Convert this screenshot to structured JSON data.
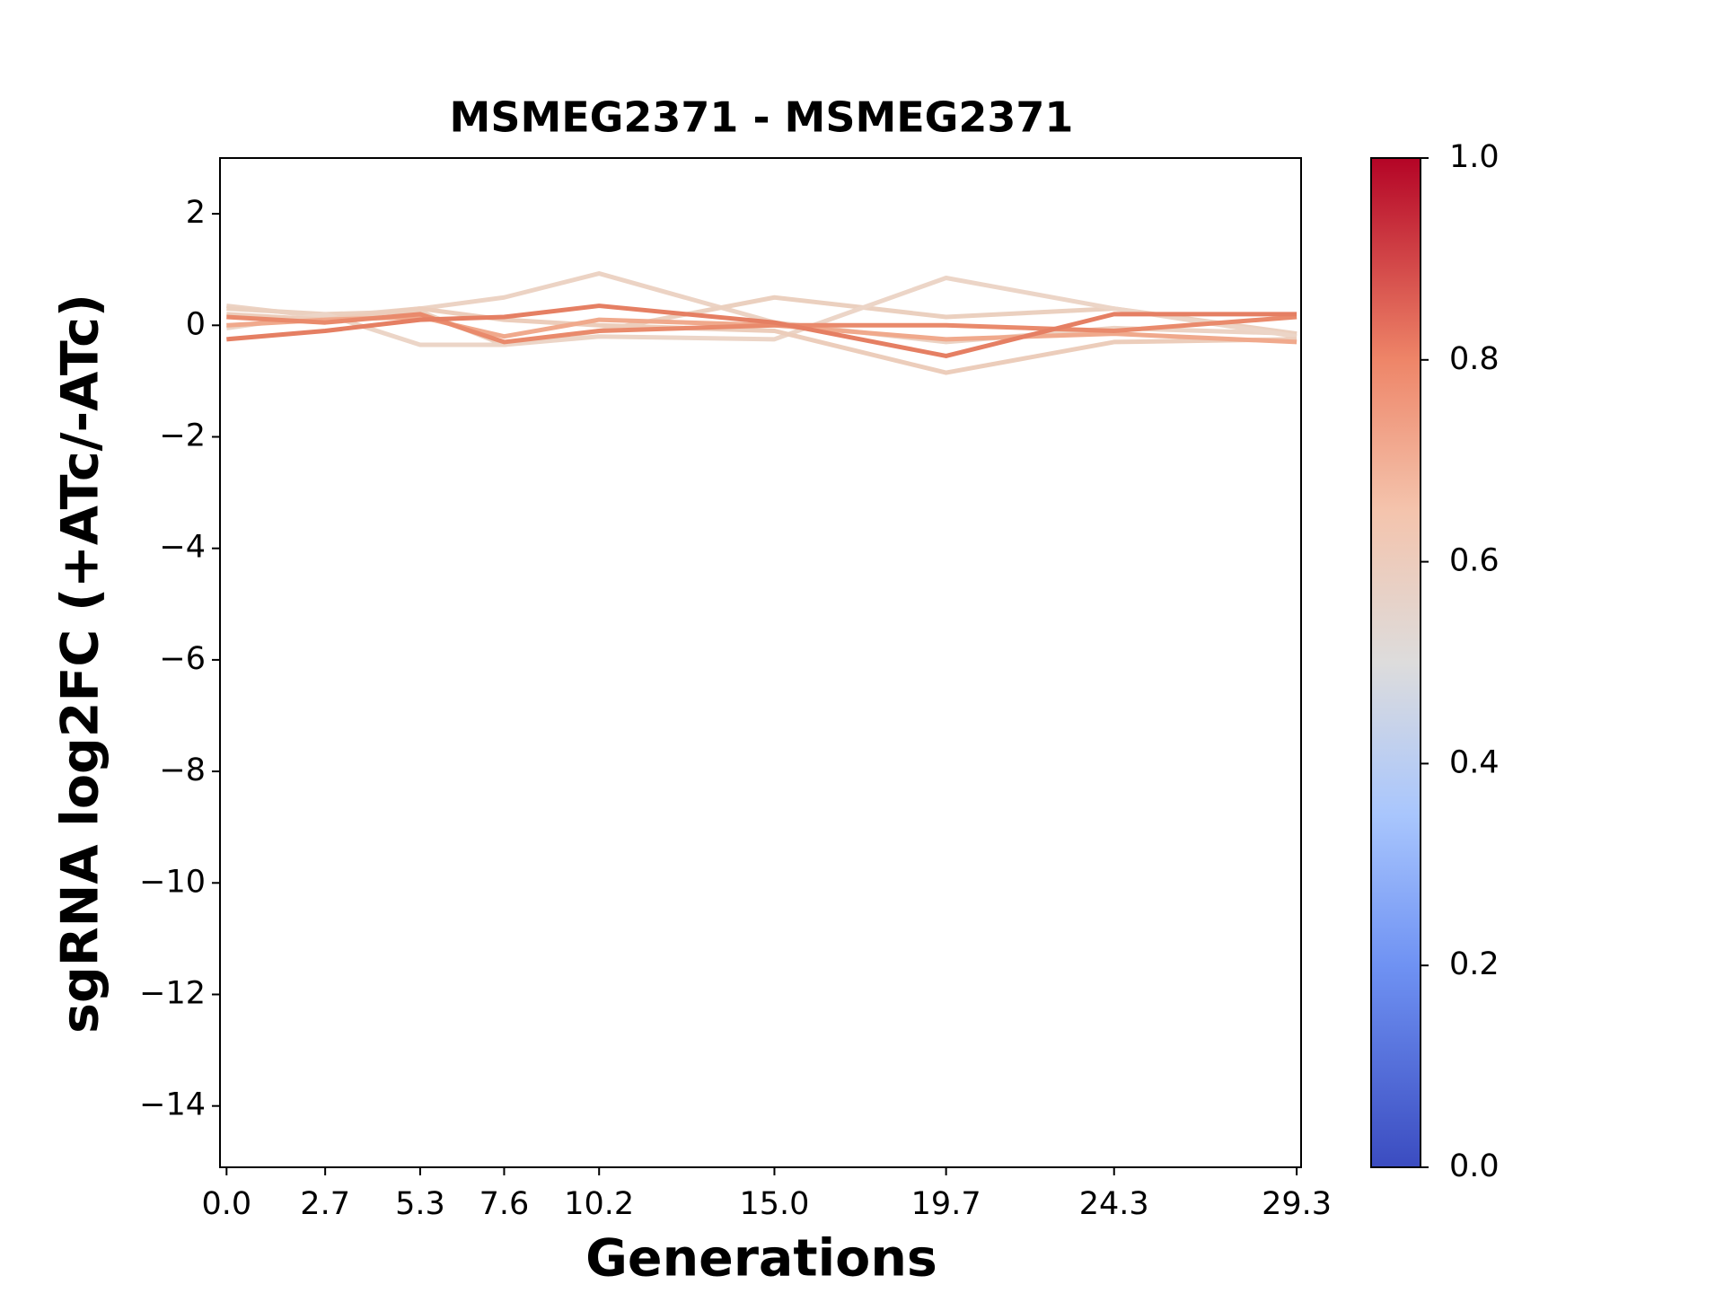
{
  "chart_data": {
    "type": "line",
    "title": "MSMEG2371 - MSMEG2371",
    "xlabel": "Generations",
    "ylabel": "sgRNA log2FC (+ATc/-ATc)",
    "x": [
      0,
      2.7,
      5.3,
      7.6,
      10.2,
      15.0,
      19.7,
      24.3,
      29.3
    ],
    "series": [
      {
        "color": "#ecd3c4",
        "values": [
          0.35,
          0.15,
          0.3,
          0.5,
          0.93,
          0.05,
          -0.3,
          -0.05,
          -0.15
        ]
      },
      {
        "color": "#ebd0bf",
        "values": [
          0.3,
          0.2,
          0.25,
          -0.35,
          -0.1,
          0.5,
          0.15,
          0.3,
          -0.15
        ]
      },
      {
        "color": "#ecd5c7",
        "values": [
          -0.05,
          0.2,
          -0.35,
          -0.35,
          -0.2,
          -0.25,
          0.85,
          0.3,
          -0.2
        ]
      },
      {
        "color": "#eccdbb",
        "values": [
          0.2,
          0.1,
          0.3,
          0.1,
          0.0,
          -0.1,
          -0.85,
          -0.3,
          -0.25
        ]
      },
      {
        "color": "#f0a98c",
        "values": [
          0.0,
          0.1,
          0.15,
          -0.2,
          0.1,
          0.0,
          -0.25,
          -0.15,
          -0.3
        ]
      },
      {
        "color": "#e98a6c",
        "values": [
          0.15,
          0.05,
          0.2,
          -0.3,
          -0.1,
          0.0,
          0.0,
          -0.1,
          0.15
        ]
      },
      {
        "color": "#e57f63",
        "values": [
          -0.25,
          -0.1,
          0.1,
          0.15,
          0.35,
          0.05,
          -0.55,
          0.2,
          0.2
        ]
      }
    ],
    "xlim": [
      -0.18,
      29.42
    ],
    "ylim": [
      -15.1,
      3
    ],
    "xticks": [
      {
        "value": 0,
        "label": "0.0"
      },
      2.7,
      5.3,
      7.6,
      10.2,
      {
        "value": 15,
        "label": "15.0"
      },
      19.7,
      24.3,
      29.3
    ],
    "yticks": [
      {
        "value": -14,
        "label": "−14"
      },
      {
        "value": -12,
        "label": "−12"
      },
      {
        "value": -10,
        "label": "−10"
      },
      {
        "value": -8,
        "label": "−8"
      },
      {
        "value": -6,
        "label": "−6"
      },
      {
        "value": -4,
        "label": "−4"
      },
      {
        "value": -2,
        "label": "−2"
      },
      0,
      2
    ],
    "grid": false,
    "colorbar": {
      "colormap": "coolwarm",
      "lim": [
        0,
        1
      ],
      "ticks": [
        {
          "value": 0,
          "label": "0.0"
        },
        0.2,
        0.4,
        0.6,
        0.8,
        {
          "value": 1,
          "label": "1.0"
        }
      ]
    }
  }
}
